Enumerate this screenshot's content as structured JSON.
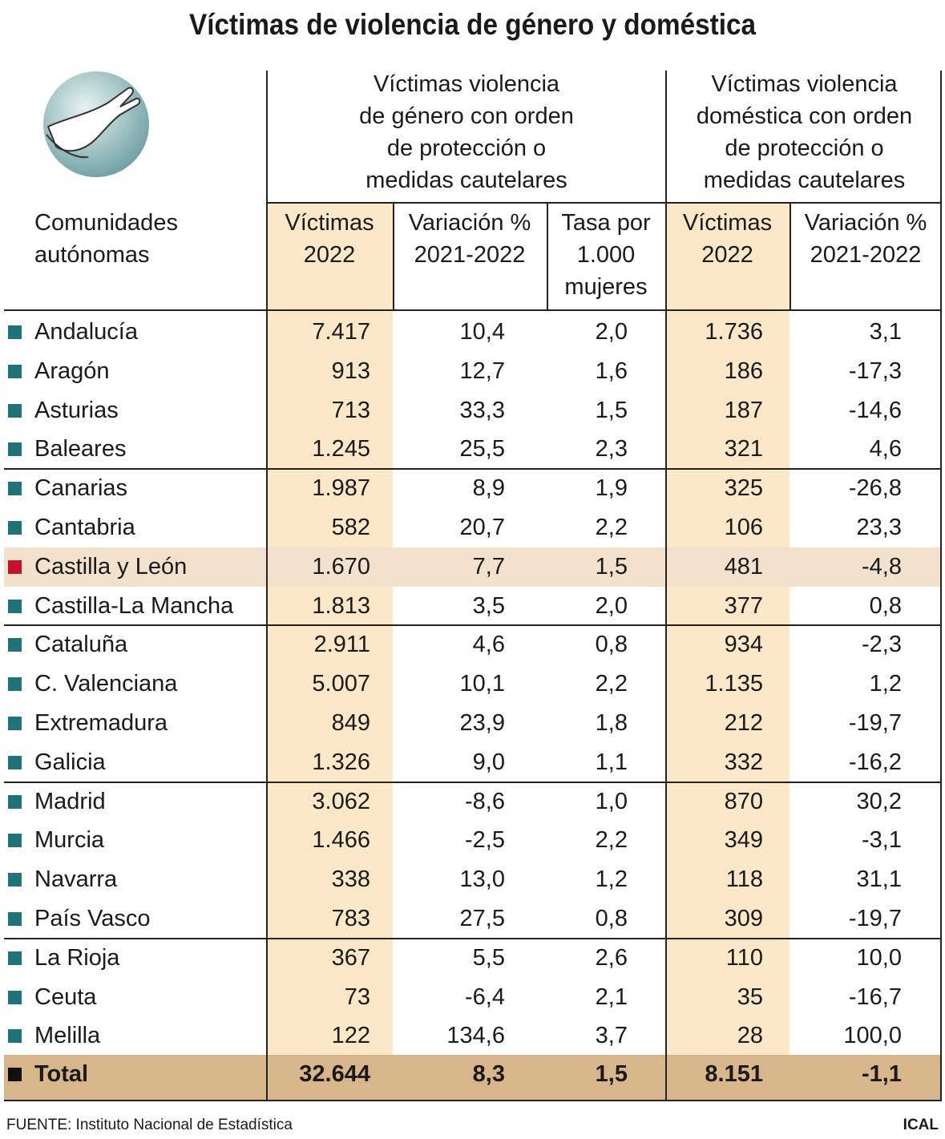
{
  "title": "Víctimas de violencia de género y doméstica",
  "header": {
    "region_label": [
      "Comunidades",
      "autónomas"
    ],
    "group1": [
      "Víctimas violencia",
      "de género con orden",
      "de protección o",
      "medidas cautelares"
    ],
    "group2": [
      "Víctimas violencia",
      "doméstica con orden",
      "de protección o",
      "medidas cautelares"
    ],
    "columns": [
      [
        "Víctimas",
        "2022"
      ],
      [
        "Variación %",
        "2021-2022"
      ],
      [
        "Tasa por",
        "1.000",
        "mujeres"
      ],
      [
        "Víctimas",
        "2022"
      ],
      [
        "Variación %",
        "2021-2022"
      ]
    ]
  },
  "table": {
    "rows": [
      [
        "Andalucía",
        "7.417",
        "10,4",
        "2,0",
        "1.736",
        "3,1"
      ],
      [
        "Aragón",
        "913",
        "12,7",
        "1,6",
        "186",
        "-17,3"
      ],
      [
        "Asturias",
        "713",
        "33,3",
        "1,5",
        "187",
        "-14,6"
      ],
      [
        "Baleares",
        "1.245",
        "25,5",
        "2,3",
        "321",
        "4,6"
      ],
      [
        "Canarias",
        "1.987",
        "8,9",
        "1,9",
        "325",
        "-26,8"
      ],
      [
        "Cantabria",
        "582",
        "20,7",
        "2,2",
        "106",
        "23,3"
      ],
      [
        "Castilla y León",
        "1.670",
        "7,7",
        "1,5",
        "481",
        "-4,8"
      ],
      [
        "Castilla-La Mancha",
        "1.813",
        "3,5",
        "2,0",
        "377",
        "0,8"
      ],
      [
        "Cataluña",
        "2.911",
        "4,6",
        "0,8",
        "934",
        "-2,3"
      ],
      [
        "C. Valenciana",
        "5.007",
        "10,1",
        "2,2",
        "1.135",
        "1,2"
      ],
      [
        "Extremadura",
        "849",
        "23,9",
        "1,8",
        "212",
        "-19,7"
      ],
      [
        "Galicia",
        "1.326",
        "9,0",
        "1,1",
        "332",
        "-16,2"
      ],
      [
        "Madrid",
        "3.062",
        "-8,6",
        "1,0",
        "870",
        "30,2"
      ],
      [
        "Murcia",
        "1.466",
        "-2,5",
        "2,2",
        "349",
        "-3,1"
      ],
      [
        "Navarra",
        "338",
        "13,0",
        "1,2",
        "118",
        "31,1"
      ],
      [
        "País Vasco",
        "783",
        "27,5",
        "0,8",
        "309",
        "-19,7"
      ],
      [
        "La Rioja",
        "367",
        "5,5",
        "2,6",
        "110",
        "10,0"
      ],
      [
        "Ceuta",
        "73",
        "-6,4",
        "2,1",
        "35",
        "-16,7"
      ],
      [
        "Melilla",
        "122",
        "134,6",
        "3,7",
        "28",
        "100,0"
      ]
    ],
    "total": [
      "Total",
      "32.644",
      "8,3",
      "1,5",
      "8.151",
      "-1,1"
    ]
  },
  "footer": {
    "source": "FUENTE: Instituto Nacional de Estadística",
    "brand": "ICAL"
  }
}
